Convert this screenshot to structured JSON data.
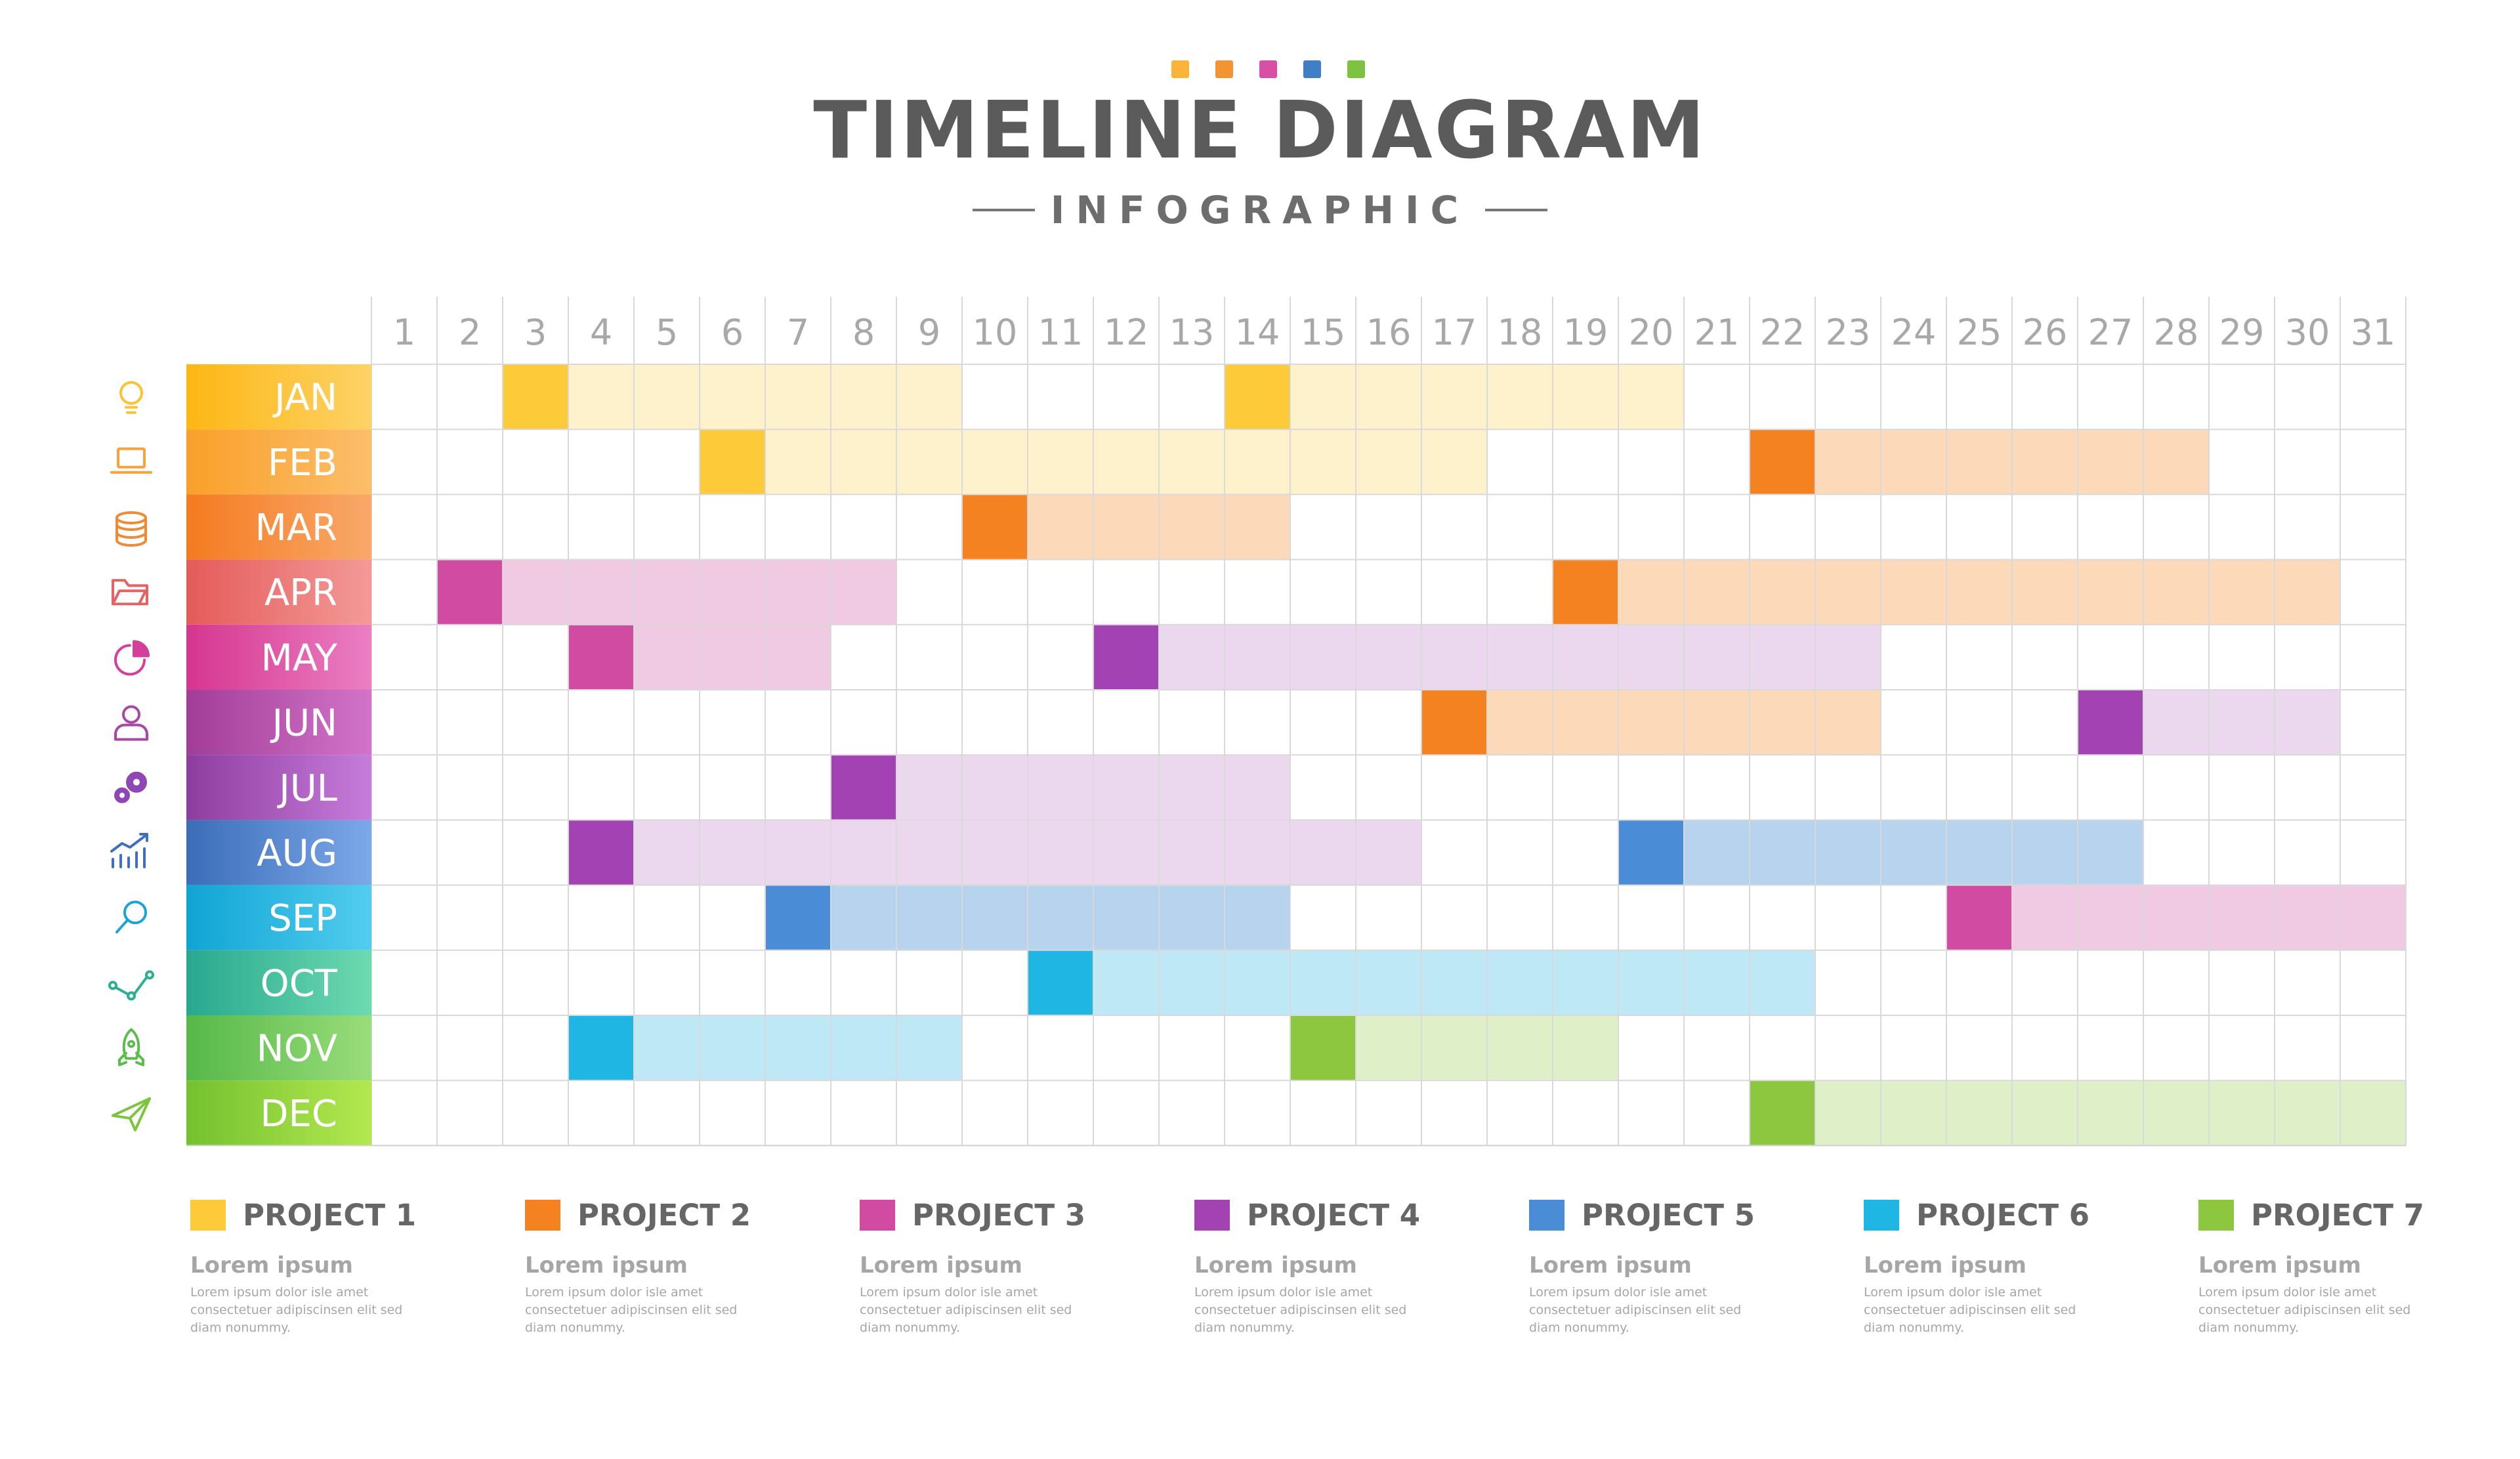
{
  "title": "TIMELINE DIAGRAM",
  "subtitle": "INFOGRAPHIC",
  "header_dot_colors": [
    "#FBB33A",
    "#F39434",
    "#D84FA6",
    "#3F7FC5",
    "#7DC241"
  ],
  "chart_data": {
    "type": "gantt",
    "days": [
      1,
      2,
      3,
      4,
      5,
      6,
      7,
      8,
      9,
      10,
      11,
      12,
      13,
      14,
      15,
      16,
      17,
      18,
      19,
      20,
      21,
      22,
      23,
      24,
      25,
      26,
      27,
      28,
      29,
      30,
      31
    ],
    "months": [
      {
        "label": "JAN",
        "icon": "lightbulb-icon",
        "from": "#FDB714",
        "to": "#FDD267",
        "icon_color": "#F9C332"
      },
      {
        "label": "FEB",
        "icon": "laptop-icon",
        "from": "#FAA02A",
        "to": "#FBBE6A",
        "icon_color": "#F7A23A"
      },
      {
        "label": "MAR",
        "icon": "coins-icon",
        "from": "#F47B20",
        "to": "#F9A86A",
        "icon_color": "#F08B34"
      },
      {
        "label": "APR",
        "icon": "folder-icon",
        "from": "#E45B5A",
        "to": "#F39A97",
        "icon_color": "#E56364"
      },
      {
        "label": "MAY",
        "icon": "pie-chart-icon",
        "from": "#D6368F",
        "to": "#EA7FC2",
        "icon_color": "#D3409B"
      },
      {
        "label": "JUN",
        "icon": "user-icon",
        "from": "#A23D97",
        "to": "#D274C9",
        "icon_color": "#A947A8"
      },
      {
        "label": "JUL",
        "icon": "gears-icon",
        "from": "#8E3D9E",
        "to": "#C67CDA",
        "icon_color": "#8F47B5"
      },
      {
        "label": "AUG",
        "icon": "growth-chart-icon",
        "from": "#3B6DB8",
        "to": "#7BA8E8",
        "icon_color": "#3F6FC0"
      },
      {
        "label": "SEP",
        "icon": "search-icon",
        "from": "#10A4D4",
        "to": "#52CDEF",
        "icon_color": "#1AA3D6"
      },
      {
        "label": "OCT",
        "icon": "network-icon",
        "from": "#28A88F",
        "to": "#6DDAB0",
        "icon_color": "#2CB092"
      },
      {
        "label": "NOV",
        "icon": "rocket-icon",
        "from": "#56B848",
        "to": "#99DD7A",
        "icon_color": "#5DBC4E"
      },
      {
        "label": "DEC",
        "icon": "paper-plane-icon",
        "from": "#74C12F",
        "to": "#B3E84F",
        "icon_color": "#7BC53A"
      }
    ],
    "projects": [
      {
        "name": "PROJECT 1",
        "color": "#FDCB3A",
        "light": "#FEF2CC",
        "sub": "Lorem ipsum",
        "desc": "Lorem ipsum dolor isle amet consectetuer adipiscinsen elit sed diam nonummy."
      },
      {
        "name": "PROJECT 2",
        "color": "#F58220",
        "light": "#FCDAB9",
        "sub": "Lorem ipsum",
        "desc": "Lorem ipsum dolor isle amet consectetuer adipiscinsen elit sed diam nonummy."
      },
      {
        "name": "PROJECT 3",
        "color": "#D14BA2",
        "light": "#F0C9E2",
        "sub": "Lorem ipsum",
        "desc": "Lorem ipsum dolor isle amet consectetuer adipiscinsen elit sed diam nonummy."
      },
      {
        "name": "PROJECT 4",
        "color": "#A342B3",
        "light": "#ECD8EE",
        "sub": "Lorem ipsum",
        "desc": "Lorem ipsum dolor isle amet consectetuer adipiscinsen elit sed diam nonummy."
      },
      {
        "name": "PROJECT 5",
        "color": "#4A8DD6",
        "light": "#B7D3EE",
        "sub": "Lorem ipsum",
        "desc": "Lorem ipsum dolor isle amet consectetuer adipiscinsen elit sed diam nonummy."
      },
      {
        "name": "PROJECT 6",
        "color": "#1FB6E3",
        "light": "#BEE8F5",
        "sub": "Lorem ipsum",
        "desc": "Lorem ipsum dolor isle amet consectetuer adipiscinsen elit sed diam nonummy."
      },
      {
        "name": "PROJECT 7",
        "color": "#8DC63F",
        "light": "#DFF0C9",
        "sub": "Lorem ipsum",
        "desc": "Lorem ipsum dolor isle amet consectetuer adipiscinsen elit sed diam nonummy."
      }
    ],
    "tasks": [
      {
        "month": 1,
        "project": 1,
        "start": 3,
        "end": 9
      },
      {
        "month": 1,
        "project": 1,
        "start": 14,
        "end": 20
      },
      {
        "month": 2,
        "project": 1,
        "start": 6,
        "end": 17
      },
      {
        "month": 2,
        "project": 2,
        "start": 22,
        "end": 28
      },
      {
        "month": 3,
        "project": 2,
        "start": 10,
        "end": 14
      },
      {
        "month": 4,
        "project": 3,
        "start": 2,
        "end": 8
      },
      {
        "month": 4,
        "project": 2,
        "start": 19,
        "end": 30
      },
      {
        "month": 5,
        "project": 3,
        "start": 4,
        "end": 7
      },
      {
        "month": 5,
        "project": 4,
        "start": 12,
        "end": 23
      },
      {
        "month": 6,
        "project": 2,
        "start": 17,
        "end": 23
      },
      {
        "month": 6,
        "project": 4,
        "start": 27,
        "end": 30
      },
      {
        "month": 7,
        "project": 4,
        "start": 8,
        "end": 14
      },
      {
        "month": 8,
        "project": 4,
        "start": 4,
        "end": 16
      },
      {
        "month": 8,
        "project": 5,
        "start": 20,
        "end": 27
      },
      {
        "month": 9,
        "project": 5,
        "start": 7,
        "end": 14
      },
      {
        "month": 9,
        "project": 3,
        "start": 25,
        "end": 31
      },
      {
        "month": 10,
        "project": 6,
        "start": 11,
        "end": 22
      },
      {
        "month": 11,
        "project": 6,
        "start": 4,
        "end": 9
      },
      {
        "month": 11,
        "project": 7,
        "start": 15,
        "end": 19
      },
      {
        "month": 12,
        "project": 7,
        "start": 22,
        "end": 31
      }
    ]
  }
}
